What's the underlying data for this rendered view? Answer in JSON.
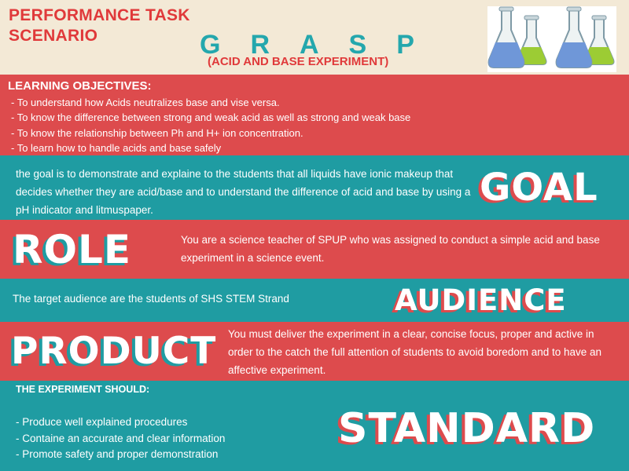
{
  "header": {
    "title_line1": "PERFORMANCE TASK",
    "title_line2": "SCENARIO",
    "grasp": "GRASP",
    "subtitle": "(ACID AND BASE EXPERIMENT)",
    "image_icon": "lab-flasks-icon"
  },
  "objectives": {
    "heading": "LEARNING OBJECTIVES:",
    "items": [
      " - To understand how Acids neutralizes base and vise versa.",
      " - To know the difference between strong and weak acid as well as strong and weak base",
      " - To know the relationship between Ph and H+ ion concentration.",
      " - To learn how to handle acids and base safely"
    ]
  },
  "goal": {
    "word": "GOAL",
    "text": "the goal is to demonstrate and explaine to the students that all liquids have ionic makeup that decides whether they are acid/base and to understand the difference of acid and base by using a pH indicator and litmuspaper."
  },
  "role": {
    "word": "ROLE",
    "text": "You are a science teacher of SPUP who was assigned to conduct a simple acid and base experiment in a science event."
  },
  "audience": {
    "word": "AUDIENCE",
    "text": "The target audience are the students of SHS STEM Strand"
  },
  "product": {
    "word": "PRODUCT",
    "text": "You must deliver the experiment in a clear, concise focus, proper and active in order to the catch the full attention of students to avoid boredom and to have an  affective experiment."
  },
  "standard": {
    "word": "STANDARD",
    "heading": "THE EXPERIMENT SHOULD:",
    "items": [
      "- Produce well explained procedures",
      "- Containe an accurate and clear information",
      "- Promote safety and proper demonstration"
    ]
  },
  "colors": {
    "red": "#dd4b4d",
    "teal": "#1f9ca2",
    "cream": "#f3e9d6",
    "title_red": "#e0393a"
  }
}
